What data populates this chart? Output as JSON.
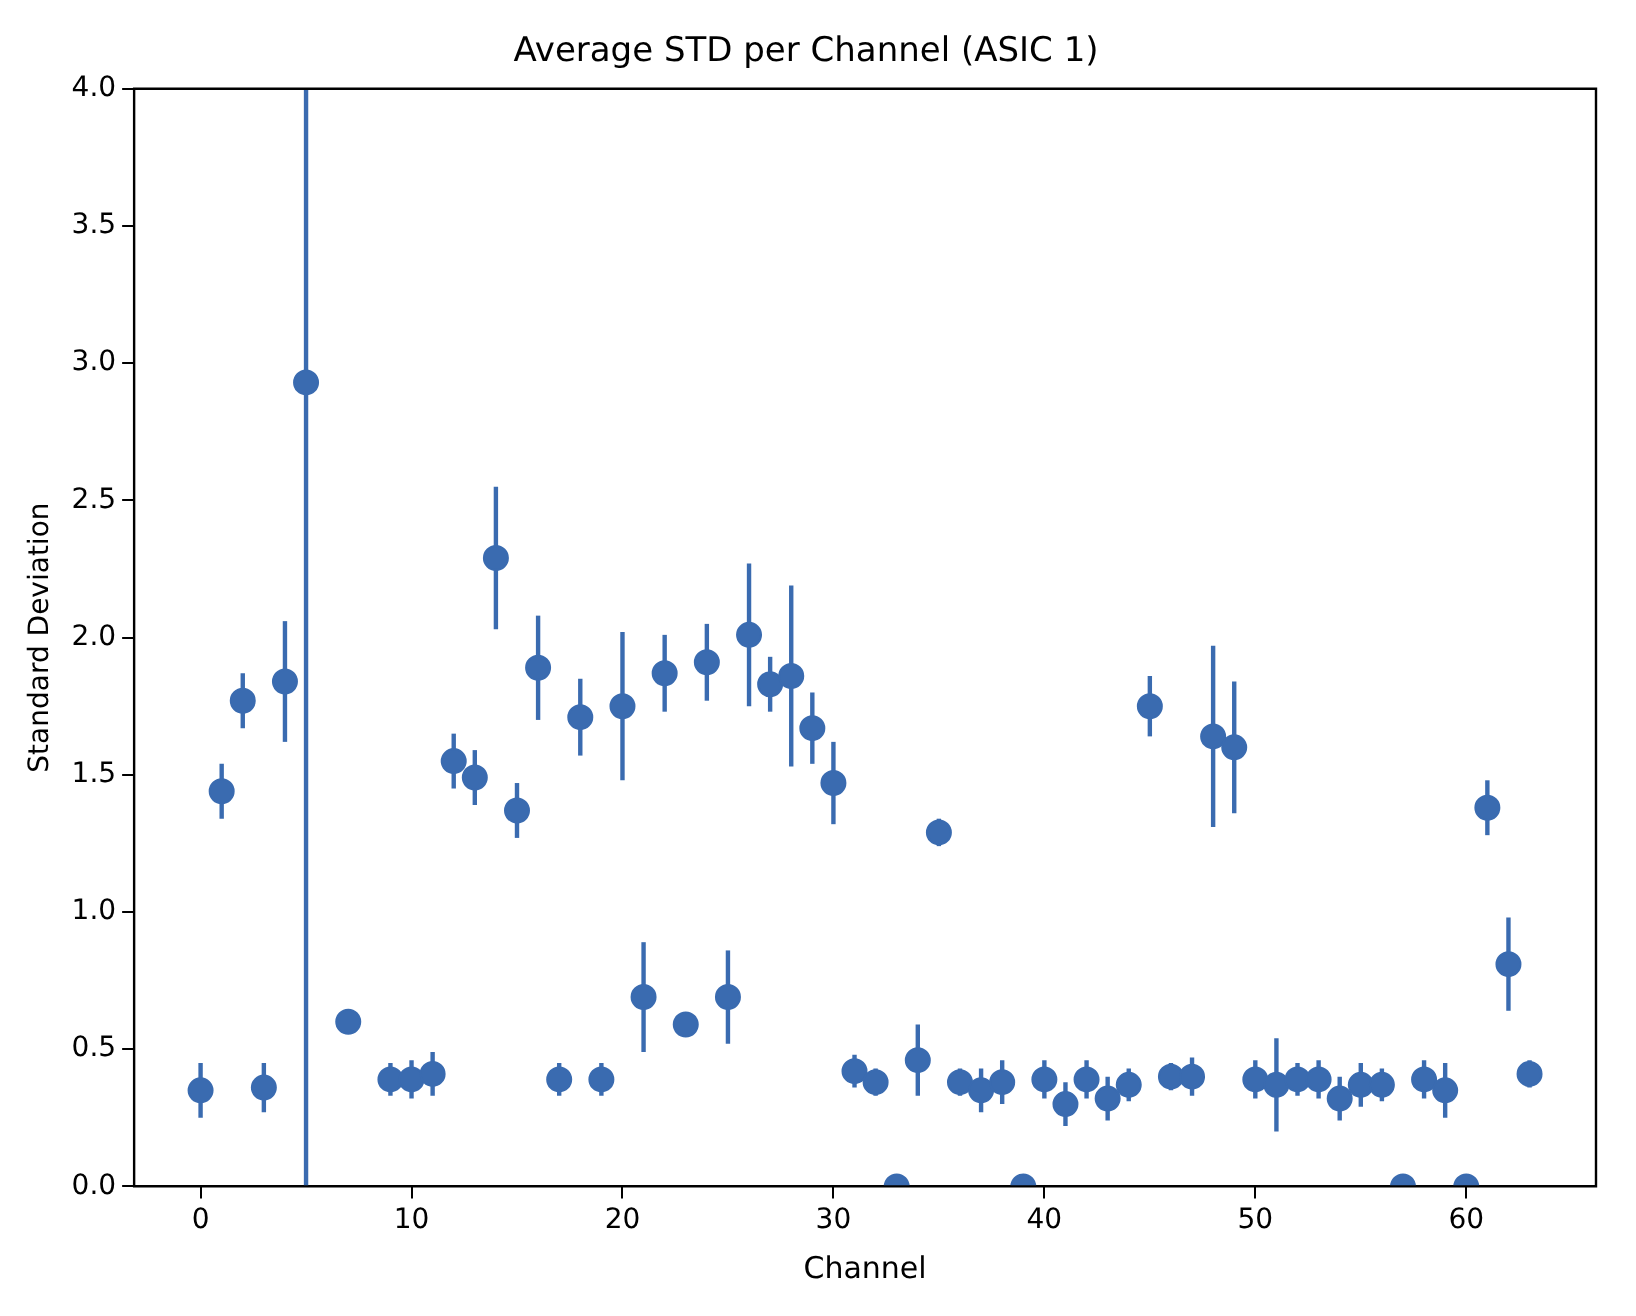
{
  "chart_data": {
    "type": "scatter",
    "title": "Average STD per Channel (ASIC 1)",
    "xlabel": "Channel",
    "ylabel": "Standard Deviation",
    "x": [
      0,
      1,
      2,
      3,
      4,
      5,
      6,
      7,
      8,
      9,
      10,
      11,
      12,
      13,
      14,
      15,
      16,
      17,
      18,
      19,
      20,
      21,
      22,
      23,
      24,
      25,
      26,
      27,
      28,
      29,
      30,
      31,
      32,
      33,
      34,
      35,
      36,
      37,
      38,
      39,
      40,
      41,
      42,
      43,
      44,
      45,
      46,
      47,
      48,
      49,
      50,
      51,
      52,
      53,
      54,
      55,
      56,
      57,
      58,
      59,
      60,
      61,
      62,
      63
    ],
    "series": [
      {
        "color": "#3a6bb0",
        "values": [
          0.35,
          1.44,
          1.77,
          0.36,
          1.84,
          2.93,
          null,
          0.6,
          null,
          0.39,
          0.39,
          0.41,
          1.55,
          1.49,
          2.29,
          1.37,
          1.89,
          0.39,
          1.71,
          0.39,
          1.75,
          0.69,
          1.87,
          0.59,
          1.91,
          0.69,
          2.01,
          1.83,
          1.86,
          1.67,
          1.47,
          0.42,
          0.38,
          0.0,
          0.46,
          1.29,
          0.38,
          0.35,
          0.38,
          0.0,
          0.39,
          0.3,
          0.39,
          0.32,
          0.37,
          1.75,
          0.4,
          0.4,
          1.64,
          1.6,
          0.39,
          0.37,
          0.39,
          0.39,
          0.32,
          0.37,
          0.37,
          0.0,
          0.39,
          0.35,
          0.0,
          1.38,
          0.81,
          0.41
        ],
        "errors": [
          0.1,
          0.1,
          0.1,
          0.09,
          0.22,
          [
            0,
            4
          ],
          null,
          null,
          null,
          0.06,
          0.07,
          0.08,
          0.1,
          0.1,
          0.26,
          0.1,
          0.19,
          0.06,
          0.14,
          0.06,
          0.27,
          0.2,
          0.14,
          null,
          0.14,
          0.17,
          0.26,
          0.1,
          0.33,
          0.13,
          0.15,
          0.06,
          0.05,
          null,
          0.13,
          0.05,
          0.05,
          0.08,
          0.08,
          null,
          0.07,
          0.08,
          0.07,
          0.08,
          0.06,
          0.11,
          0.05,
          0.07,
          0.33,
          0.24,
          0.07,
          0.17,
          0.06,
          0.07,
          0.08,
          0.08,
          0.06,
          null,
          0.07,
          0.1,
          null,
          0.1,
          0.17,
          0.05
        ]
      }
    ],
    "xlim": [
      -3.15,
      66.15
    ],
    "xticks": [
      0,
      10,
      20,
      30,
      40,
      50,
      60
    ],
    "ylim": [
      0,
      4
    ],
    "yticks": [
      {
        "value": 0,
        "label": "0.0"
      },
      0.5,
      {
        "value": 1,
        "label": "1.0"
      },
      1.5,
      {
        "value": 2,
        "label": "2.0"
      },
      2.5,
      {
        "value": 3,
        "label": "3.0"
      },
      3.5,
      {
        "value": 4,
        "label": "4.0"
      }
    ],
    "grid": false,
    "legend": false,
    "marker": "circle"
  }
}
